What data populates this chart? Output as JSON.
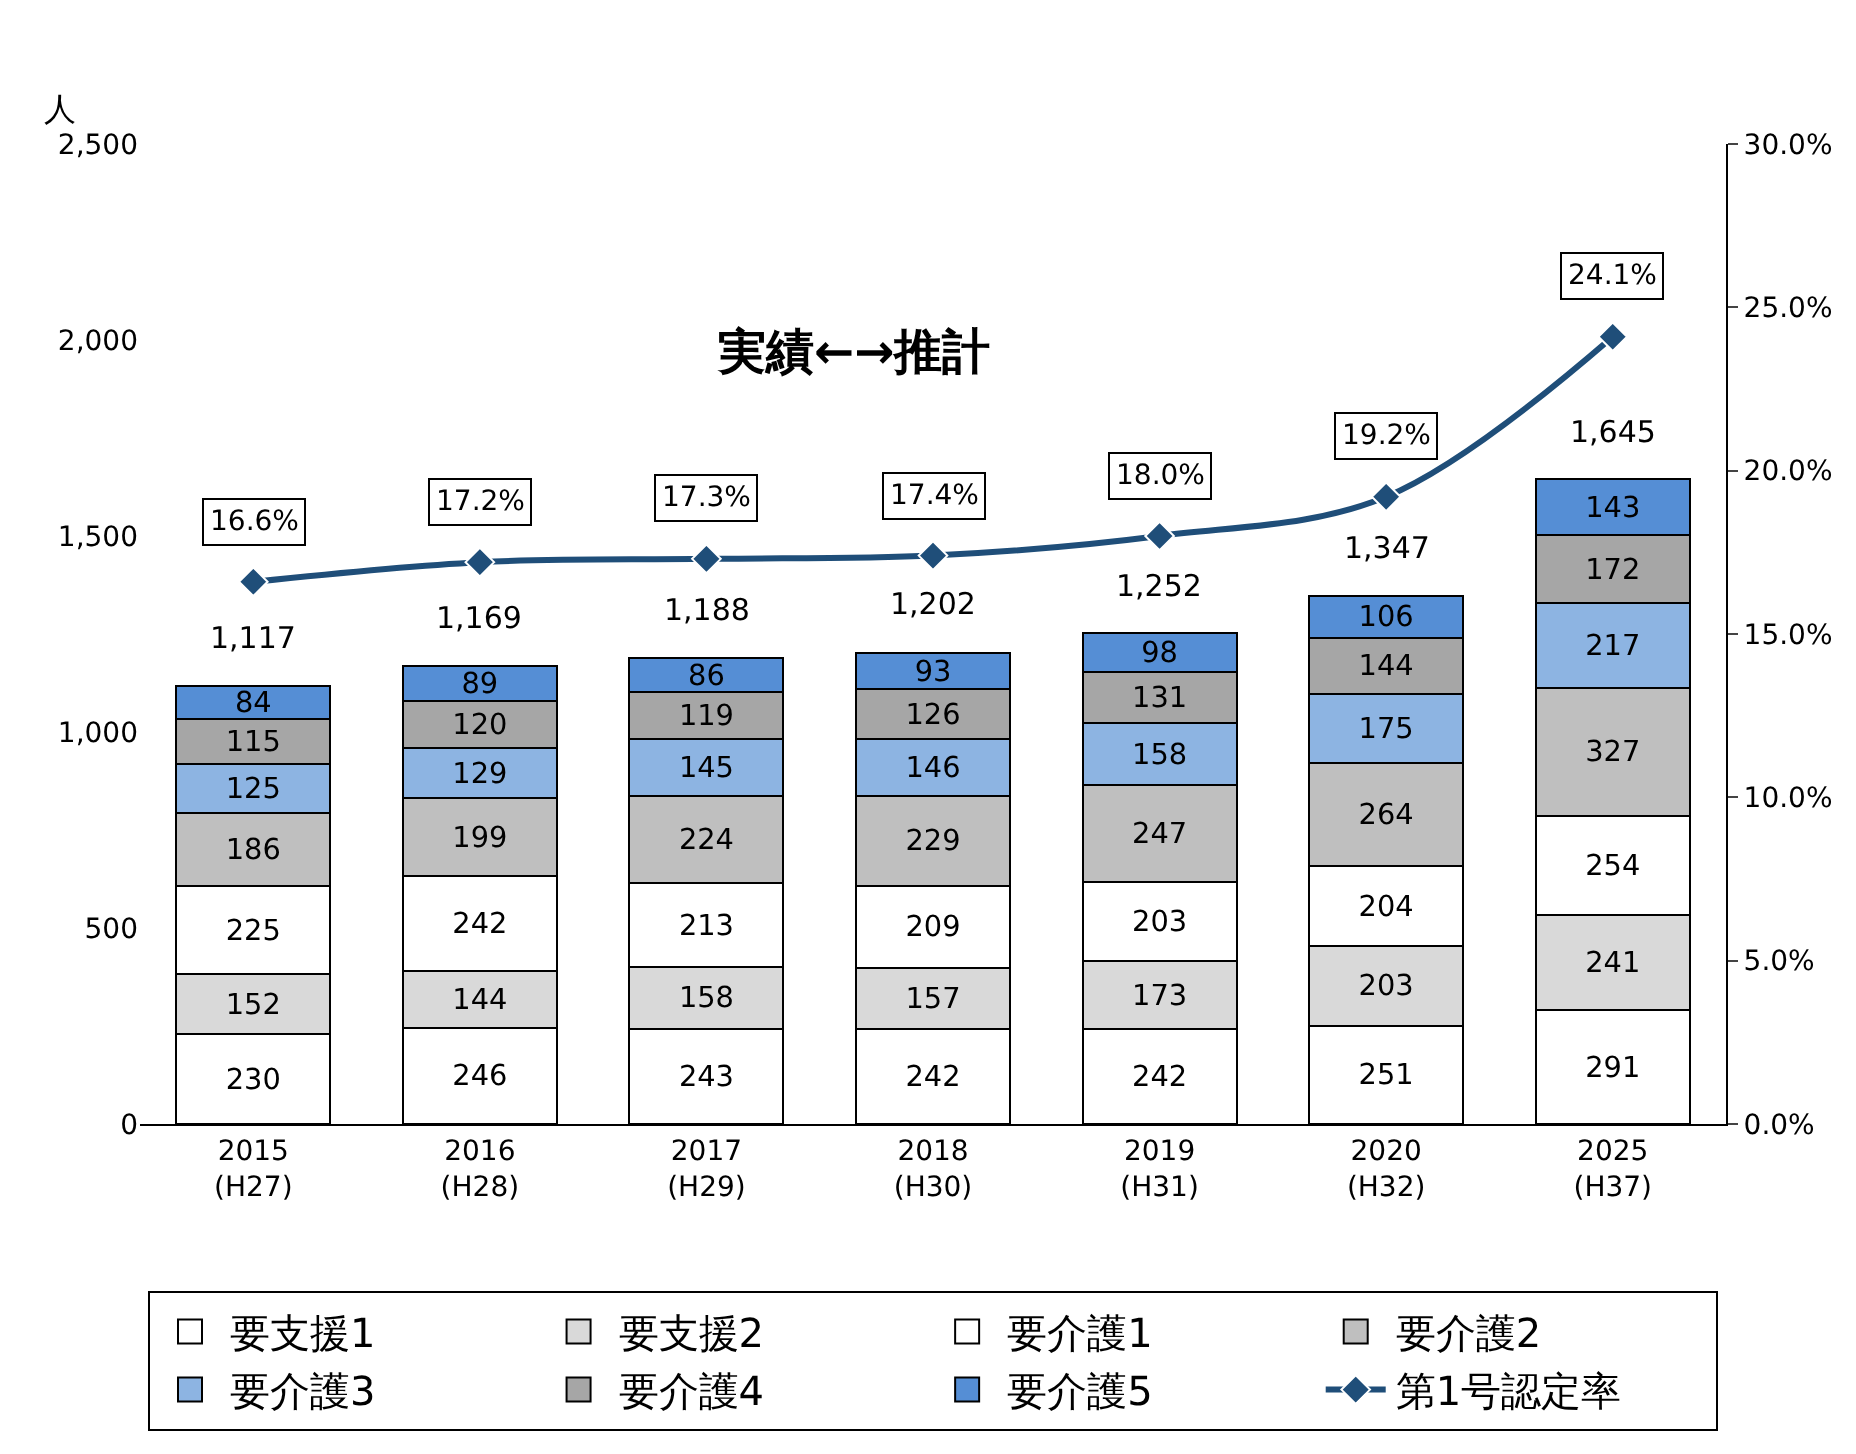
{
  "chart_data": {
    "type": "bar",
    "stacked": true,
    "ylabel": "人",
    "categories": [
      "2015\n(H27)",
      "2016\n(H28)",
      "2017\n(H29)",
      "2018\n(H30)",
      "2019\n(H31)",
      "2020\n(H32)",
      "2025\n(H37)"
    ],
    "series": [
      {
        "name": "要支援1",
        "color": "#ffffff",
        "values": [
          230,
          246,
          243,
          242,
          242,
          251,
          291
        ]
      },
      {
        "name": "要支援2",
        "color": "#d9d9d9",
        "values": [
          152,
          144,
          158,
          157,
          173,
          203,
          241
        ]
      },
      {
        "name": "要介護1",
        "color": "#ffffff",
        "values": [
          225,
          242,
          213,
          209,
          203,
          204,
          254
        ]
      },
      {
        "name": "要介護2",
        "color": "#bfbfbf",
        "values": [
          186,
          199,
          224,
          229,
          247,
          264,
          327
        ]
      },
      {
        "name": "要介護3",
        "color": "#8db4e2",
        "values": [
          125,
          129,
          145,
          146,
          158,
          175,
          217
        ]
      },
      {
        "name": "要介護4",
        "color": "#a6a6a6",
        "values": [
          115,
          120,
          119,
          126,
          131,
          144,
          172
        ]
      },
      {
        "name": "要介護5",
        "color": "#558ed5",
        "values": [
          84,
          89,
          86,
          93,
          98,
          106,
          143
        ]
      },
      {
        "name": "第1号認定率",
        "type": "line",
        "axis": "y2",
        "color": "#1f4e79",
        "marker": "diamond",
        "values": [
          16.6,
          17.2,
          17.3,
          17.4,
          18.0,
          19.2,
          24.1
        ],
        "value_labels": [
          "16.6%",
          "17.2%",
          "17.3%",
          "17.4%",
          "18.0%",
          "19.2%",
          "24.1%"
        ]
      }
    ],
    "data_labels": true,
    "totals": [
      "1,117",
      "1,169",
      "1,188",
      "1,202",
      "1,252",
      "1,347",
      "1,645"
    ],
    "ylim": [
      0,
      2500
    ],
    "yticks": [
      {
        "value": 0,
        "label": "0"
      },
      {
        "value": 500,
        "label": "500"
      },
      {
        "value": 1000,
        "label": "1,000"
      },
      {
        "value": 1500,
        "label": "1,500"
      },
      {
        "value": 2000,
        "label": "2,000"
      },
      {
        "value": 2500,
        "label": "2,500"
      }
    ],
    "y2lim": [
      0,
      30
    ],
    "y2ticks": [
      {
        "value": 0,
        "label": "0.0%"
      },
      {
        "value": 5,
        "label": "5.0%"
      },
      {
        "value": 10,
        "label": "10.0%"
      },
      {
        "value": 15,
        "label": "15.0%"
      },
      {
        "value": 20,
        "label": "20.0%"
      },
      {
        "value": 25,
        "label": "25.0%"
      },
      {
        "value": 30,
        "label": "30.0%"
      }
    ],
    "annotations": [
      "実績←→推計"
    ],
    "legend": "bottom"
  }
}
